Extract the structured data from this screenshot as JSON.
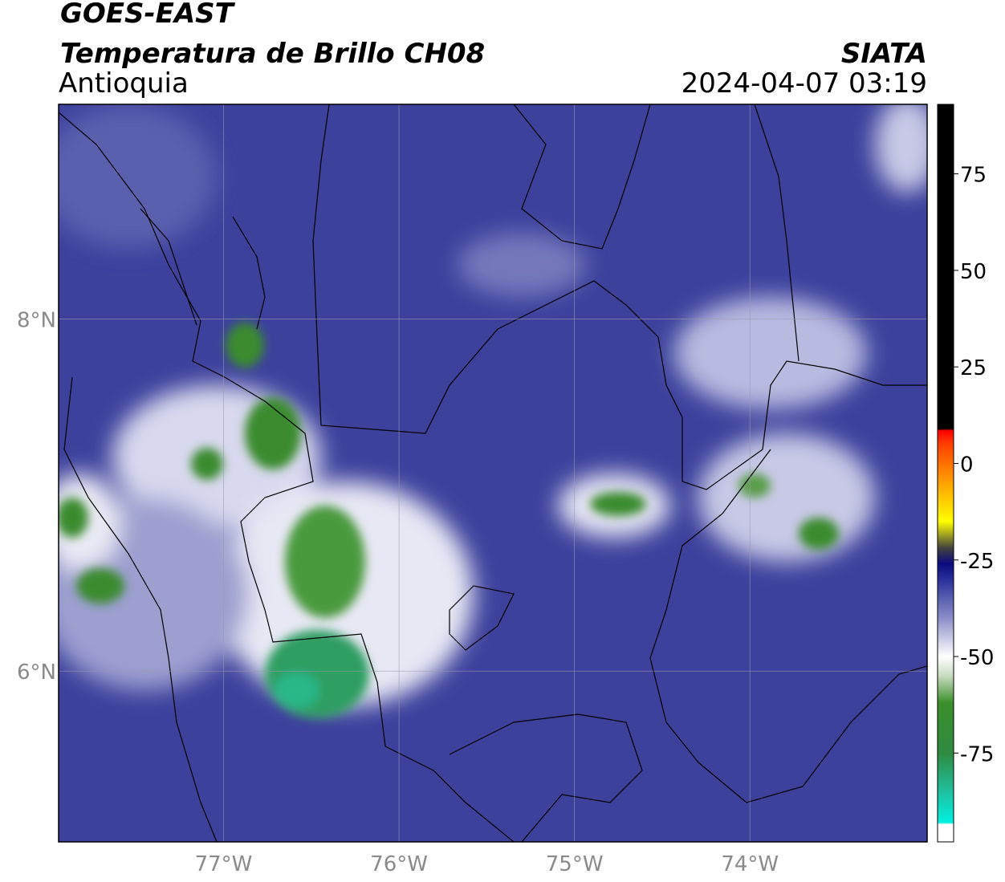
{
  "header": {
    "title": "GOES-EAST",
    "subtitle": "Temperatura de Brillo CH08",
    "region": "Antioquia",
    "agency": "SIATA",
    "timestamp": "2024-04-07 03:19"
  },
  "map": {
    "lonlim": [
      -77.94,
      -72.99
    ],
    "latlim": [
      5.03,
      9.22
    ],
    "lon_ticks": [
      {
        "value": -77,
        "label": "77°W"
      },
      {
        "value": -76,
        "label": "76°W"
      },
      {
        "value": -75,
        "label": "75°W"
      },
      {
        "value": -74,
        "label": "74°W"
      }
    ],
    "lat_ticks": [
      {
        "value": 8,
        "label": "8°N"
      },
      {
        "value": 6,
        "label": "6°N"
      }
    ],
    "grid": true
  },
  "colorbar": {
    "lim": [
      -98,
      93
    ],
    "ticks": [
      75,
      50,
      25,
      0,
      -25,
      -50,
      -75
    ],
    "stops": [
      {
        "value": -98,
        "color": "#ffffff"
      },
      {
        "value": -93.5,
        "color": "#ffffff"
      },
      {
        "value": -93,
        "color": "#00f0e0"
      },
      {
        "value": -85,
        "color": "#20c0a0"
      },
      {
        "value": -75,
        "color": "#2e8b40"
      },
      {
        "value": -62,
        "color": "#3a8f2a"
      },
      {
        "value": -55,
        "color": "#c8dcc0"
      },
      {
        "value": -50,
        "color": "#ffffff"
      },
      {
        "value": -40,
        "color": "#8a8ec8"
      },
      {
        "value": -30,
        "color": "#2a2f9a"
      },
      {
        "value": -26,
        "color": "#0a0a80"
      },
      {
        "value": -22,
        "color": "#404040"
      },
      {
        "value": -15,
        "color": "#ffff00"
      },
      {
        "value": -5,
        "color": "#ffa000"
      },
      {
        "value": 5,
        "color": "#ff4000"
      },
      {
        "value": 8.5,
        "color": "#ff0000"
      },
      {
        "value": 9,
        "color": "#000000"
      },
      {
        "value": 93,
        "color": "#000000"
      }
    ]
  }
}
